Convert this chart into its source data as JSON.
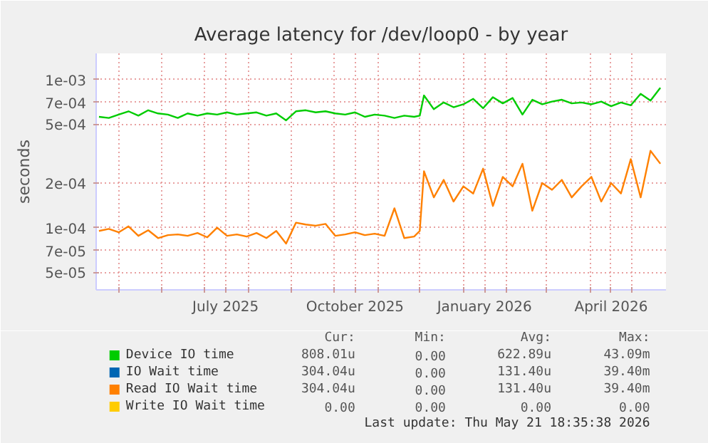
{
  "chart_data": {
    "type": "line",
    "title": "Average latency for /dev/loop0 - by year",
    "ylabel": "seconds",
    "x": [
      "2025-04-17",
      "2025-04-24",
      "2025-05-01",
      "2025-05-08",
      "2025-05-15",
      "2025-05-22",
      "2025-05-29",
      "2025-06-05",
      "2025-06-12",
      "2025-06-19",
      "2025-06-26",
      "2025-07-03",
      "2025-07-10",
      "2025-07-17",
      "2025-07-24",
      "2025-07-31",
      "2025-08-07",
      "2025-08-14",
      "2025-08-21",
      "2025-08-28",
      "2025-09-04",
      "2025-09-11",
      "2025-09-18",
      "2025-09-25",
      "2025-10-02",
      "2025-10-09",
      "2025-10-16",
      "2025-10-23",
      "2025-10-30",
      "2025-11-06",
      "2025-11-13",
      "2025-11-20",
      "2025-11-27",
      "2025-12-01",
      "2025-12-04",
      "2025-12-11",
      "2025-12-18",
      "2025-12-25",
      "2026-01-01",
      "2026-01-08",
      "2026-01-15",
      "2026-01-22",
      "2026-01-29",
      "2026-02-05",
      "2026-02-12",
      "2026-02-19",
      "2026-02-26",
      "2026-03-05",
      "2026-03-12",
      "2026-03-19",
      "2026-03-26",
      "2026-04-02",
      "2026-04-09",
      "2026-04-16",
      "2026-04-23",
      "2026-04-30",
      "2026-05-07",
      "2026-05-14",
      "2026-05-21"
    ],
    "series": [
      {
        "name": "Device IO time",
        "color": "#00cc00",
        "values": [
          0.00056,
          0.00055,
          0.00058,
          0.00061,
          0.00057,
          0.00062,
          0.00059,
          0.00058,
          0.00055,
          0.00059,
          0.00057,
          0.00059,
          0.00058,
          0.0006,
          0.00058,
          0.00059,
          0.0006,
          0.00057,
          0.00059,
          0.00053,
          0.00061,
          0.00062,
          0.0006,
          0.00061,
          0.00059,
          0.00058,
          0.0006,
          0.00056,
          0.00058,
          0.00057,
          0.00055,
          0.00057,
          0.00056,
          0.00057,
          0.00078,
          0.00063,
          0.0007,
          0.00065,
          0.00068,
          0.00074,
          0.00064,
          0.00076,
          0.00069,
          0.00075,
          0.00058,
          0.00073,
          0.00068,
          0.00071,
          0.00073,
          0.00069,
          0.0007,
          0.00068,
          0.00071,
          0.00066,
          0.0007,
          0.00067,
          0.0008,
          0.00072,
          0.00088
        ]
      },
      {
        "name": "IO Wait time",
        "color": "#0066b3",
        "values": [
          null,
          null,
          null,
          null,
          null,
          null,
          null,
          null,
          null,
          null,
          null,
          null,
          null,
          null,
          null,
          null,
          null,
          null,
          null,
          null,
          null,
          null,
          null,
          null,
          null,
          null,
          null,
          null,
          null,
          null,
          null,
          null,
          null,
          null,
          null,
          null,
          null,
          null,
          null,
          null,
          null,
          null,
          null,
          null,
          null,
          null,
          null,
          null,
          null,
          null,
          null,
          null,
          null,
          null,
          null,
          null,
          null,
          null,
          null
        ]
      },
      {
        "name": "Read IO Wait time",
        "color": "#ff8000",
        "values": [
          9.5e-05,
          9.8e-05,
          9.3e-05,
          0.000102,
          8.8e-05,
          9.6e-05,
          8.5e-05,
          8.9e-05,
          9e-05,
          8.8e-05,
          9.2e-05,
          8.6e-05,
          0.0001,
          8.8e-05,
          9e-05,
          8.7e-05,
          9.2e-05,
          8.5e-05,
          9.5e-05,
          7.8e-05,
          0.000108,
          0.000105,
          0.000103,
          0.000106,
          8.8e-05,
          9e-05,
          9.3e-05,
          8.9e-05,
          9.1e-05,
          8.8e-05,
          0.000135,
          8.5e-05,
          8.7e-05,
          9.5e-05,
          0.00024,
          0.00016,
          0.00021,
          0.00015,
          0.00019,
          0.00017,
          0.00025,
          0.00014,
          0.00022,
          0.00019,
          0.00027,
          0.00013,
          0.0002,
          0.00018,
          0.00021,
          0.00016,
          0.00019,
          0.00022,
          0.00015,
          0.0002,
          0.00017,
          0.00029,
          0.00016,
          0.00033,
          0.00027
        ]
      },
      {
        "name": "Write IO Wait time",
        "color": "#ffcc00",
        "values": [
          null,
          null,
          null,
          null,
          null,
          null,
          null,
          null,
          null,
          null,
          null,
          null,
          null,
          null,
          null,
          null,
          null,
          null,
          null,
          null,
          null,
          null,
          null,
          null,
          null,
          null,
          null,
          null,
          null,
          null,
          null,
          null,
          null,
          null,
          null,
          null,
          null,
          null,
          null,
          null,
          null,
          null,
          null,
          null,
          null,
          null,
          null,
          null,
          null,
          null,
          null,
          null,
          null,
          null,
          null,
          null,
          null,
          null,
          null
        ]
      }
    ],
    "log": "y",
    "grid": true,
    "legend": "bottom",
    "xlim": [
      "2025-04-15",
      "2026-05-25"
    ],
    "xticks": [
      {
        "value": "2025-05-01",
        "label": null
      },
      {
        "value": "2025-06-01",
        "label": null
      },
      {
        "value": "2025-07-01",
        "label": null
      },
      {
        "value": "2025-07-16",
        "label": "July 2025"
      },
      {
        "value": "2025-08-01",
        "label": null
      },
      {
        "value": "2025-09-01",
        "label": null
      },
      {
        "value": "2025-10-01",
        "label": null
      },
      {
        "value": "2025-10-16",
        "label": "October 2025"
      },
      {
        "value": "2025-11-01",
        "label": null
      },
      {
        "value": "2025-12-01",
        "label": null
      },
      {
        "value": "2026-01-01",
        "label": null
      },
      {
        "value": "2026-01-16",
        "label": "January 2026"
      },
      {
        "value": "2026-02-01",
        "label": null
      },
      {
        "value": "2026-03-01",
        "label": null
      },
      {
        "value": "2026-04-01",
        "label": null
      },
      {
        "value": "2026-04-16",
        "label": "April 2026"
      },
      {
        "value": "2026-05-01",
        "label": null
      }
    ],
    "ylim": [
      3.8e-05,
      0.0015
    ],
    "yticks": [
      {
        "value": 5e-05,
        "label": "5e-05"
      },
      {
        "value": 7e-05,
        "label": "7e-05"
      },
      {
        "value": 0.0001,
        "label": "1e-04"
      },
      {
        "value": 0.0002,
        "label": "2e-04"
      },
      {
        "value": 0.0005,
        "label": "5e-04"
      },
      {
        "value": 0.0007,
        "label": "7e-04"
      },
      {
        "value": 0.001,
        "label": "1e-03"
      }
    ],
    "annotations": [
      "Cur:",
      "Min:",
      "Avg:",
      "Max:",
      "808.01u",
      "0.00",
      "622.89u",
      "43.09m",
      "304.04u",
      "0.00",
      "131.40u",
      "39.40m",
      "304.04u",
      "0.00",
      "131.40u",
      "39.40m",
      "0.00",
      "0.00",
      "0.00",
      "0.00",
      "Last update: Thu May 21 18:35:38 2026"
    ]
  }
}
